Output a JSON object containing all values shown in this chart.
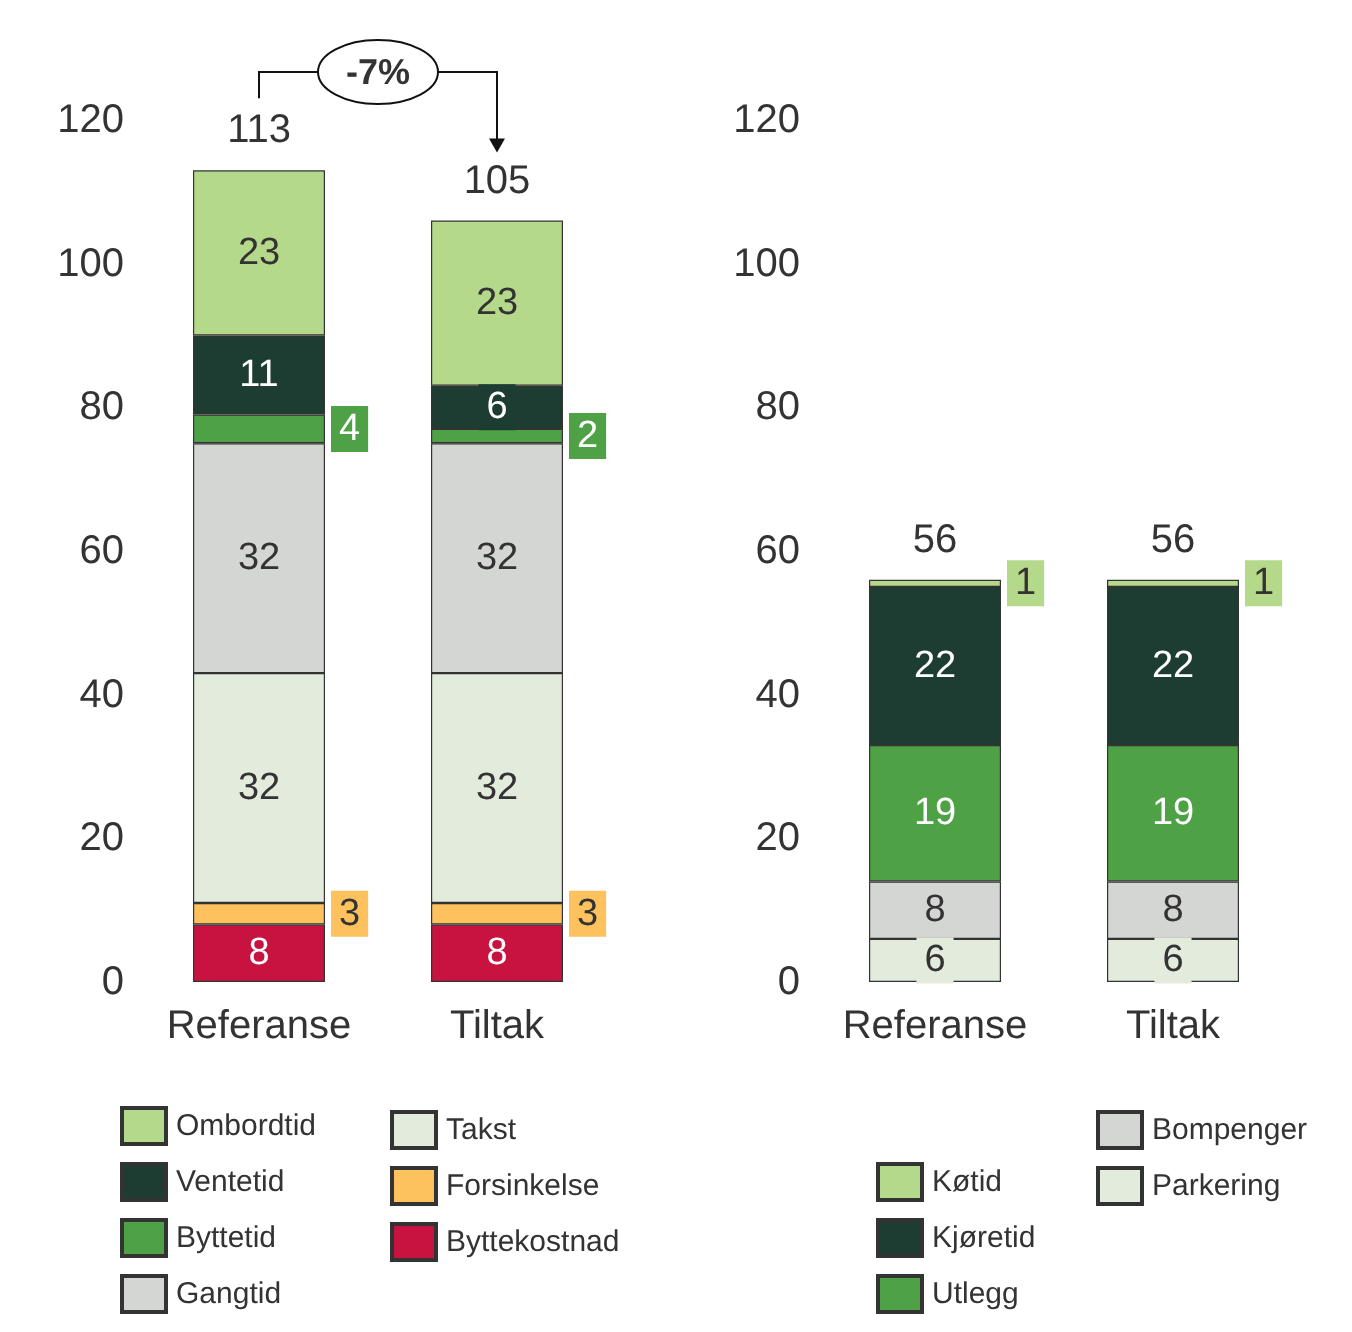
{
  "chart_data": [
    {
      "type": "bar",
      "stacked": true,
      "categories": [
        "Referanse",
        "Tiltak"
      ],
      "ylim": [
        0,
        120
      ],
      "yticks": [
        0,
        20,
        40,
        60,
        80,
        100,
        120
      ],
      "grid": false,
      "legend": "bottom",
      "data_labels": true,
      "totals": [
        "113",
        "105"
      ],
      "annotations": [
        "-7%"
      ],
      "series": [
        {
          "name": "Byttekostnad",
          "color": "#c8123f",
          "values": [
            8,
            8
          ]
        },
        {
          "name": "Forsinkelse",
          "color": "#fdc25d",
          "values": [
            3,
            3
          ]
        },
        {
          "name": "Takst",
          "color": "#e3ecdc",
          "values": [
            32,
            32
          ]
        },
        {
          "name": "Gangtid",
          "color": "#d4d6d3",
          "values": [
            32,
            32
          ]
        },
        {
          "name": "Byttetid",
          "color": "#4ea145",
          "values": [
            4,
            2
          ]
        },
        {
          "name": "Ventetid",
          "color": "#1e3d32",
          "values": [
            11,
            6
          ]
        },
        {
          "name": "Ombordtid",
          "color": "#b5d98a",
          "values": [
            23,
            23
          ]
        }
      ]
    },
    {
      "type": "bar",
      "stacked": true,
      "categories": [
        "Referanse",
        "Tiltak"
      ],
      "ylim": [
        0,
        120
      ],
      "yticks": [
        0,
        20,
        40,
        60,
        80,
        100,
        120
      ],
      "grid": false,
      "legend": "bottom",
      "data_labels": true,
      "totals": [
        "56",
        "56"
      ],
      "series": [
        {
          "name": "Parkering",
          "color": "#e3ecdc",
          "values": [
            6,
            6
          ]
        },
        {
          "name": "Bompenger",
          "color": "#d4d6d3",
          "values": [
            8,
            8
          ]
        },
        {
          "name": "Utlegg",
          "color": "#4ea145",
          "values": [
            19,
            19
          ]
        },
        {
          "name": "Kjøretid",
          "color": "#1e3d32",
          "values": [
            22,
            22
          ]
        },
        {
          "name": "Køtid",
          "color": "#b5d98a",
          "values": [
            1,
            1
          ]
        }
      ]
    }
  ]
}
